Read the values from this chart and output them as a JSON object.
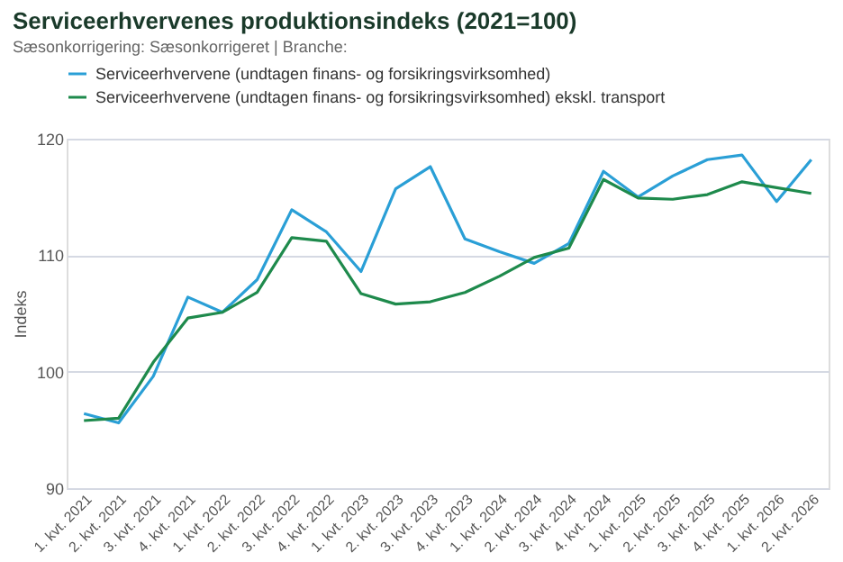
{
  "chart_data": {
    "type": "line",
    "title": "Serviceerhvervenes produktionsindeks (2021=100)",
    "subtitle": "Sæsonkorrigering: Sæsonkorrigeret | Branche:",
    "ylabel": "Indeks",
    "categories": [
      "1. kvt. 2021",
      "2. kvt. 2021",
      "3. kvt. 2021",
      "4. kvt. 2021",
      "1. kvt. 2022",
      "2. kvt. 2022",
      "3. kvt. 2022",
      "4. kvt. 2022",
      "1. kvt. 2023",
      "2. kvt. 2023",
      "3. kvt. 2023",
      "4. kvt. 2023",
      "1. kvt. 2024",
      "2. kvt. 2024",
      "3. kvt. 2024",
      "4. kvt. 2024",
      "1. kvt. 2025",
      "2. kvt. 2025",
      "3. kvt. 2025",
      "4. kvt. 2025",
      "1. kvt. 2026",
      "2. kvt. 2026"
    ],
    "series": [
      {
        "name": "Serviceerhvervene (undtagen finans- og forsikringsvirksomhed)",
        "color": "#2a9fd6",
        "values": [
          96.4,
          95.6,
          99.6,
          106.4,
          105.1,
          107.9,
          113.9,
          112.0,
          108.6,
          115.7,
          117.6,
          111.4,
          110.3,
          109.3,
          111.0,
          117.2,
          115.0,
          116.8,
          118.2,
          118.6,
          114.6,
          118.2
        ]
      },
      {
        "name": "Serviceerhvervene (undtagen finans- og forsikringsvirksomhed)     ekskl. transport",
        "color": "#1e8a4c",
        "values": [
          95.8,
          96.0,
          100.8,
          104.6,
          105.1,
          106.8,
          111.5,
          111.2,
          106.7,
          105.8,
          106.0,
          106.8,
          108.2,
          109.8,
          110.6,
          116.5,
          114.9,
          114.8,
          115.2,
          116.3,
          115.8,
          115.3
        ]
      }
    ],
    "ylim": [
      90,
      120
    ],
    "yticks": [
      90,
      100,
      110,
      120
    ],
    "grid": "y",
    "legend": "top",
    "marker": "none",
    "line_style": "solid"
  }
}
